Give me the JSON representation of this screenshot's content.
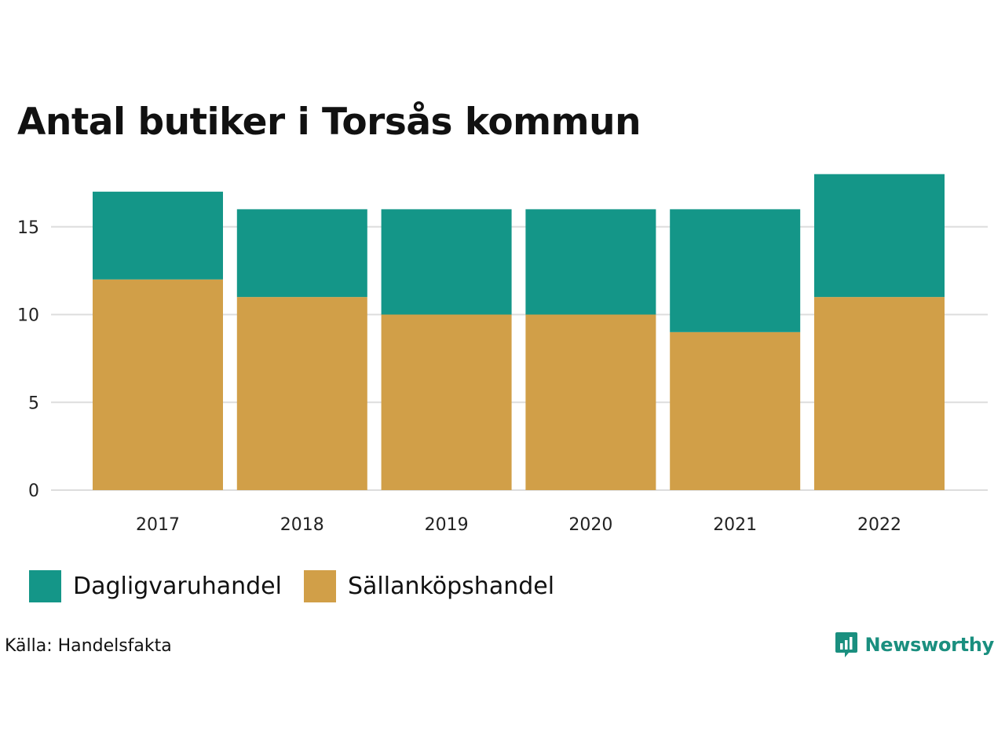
{
  "chart_data": {
    "type": "bar",
    "stacked": true,
    "title": "Antal butiker i Torsås kommun",
    "categories": [
      "2017",
      "2018",
      "2019",
      "2020",
      "2021",
      "2022"
    ],
    "series": [
      {
        "name": "Sällanköpshandel",
        "values": [
          12,
          11,
          10,
          10,
          9,
          11
        ],
        "color": "#d19f48"
      },
      {
        "name": "Dagligvaruhandel",
        "values": [
          5,
          5,
          6,
          6,
          7,
          7
        ],
        "color": "#149688"
      }
    ],
    "yticks": [
      "0",
      "5",
      "10",
      "15"
    ],
    "ylim": [
      0,
      18
    ],
    "grid": true,
    "legend_position": "bottom-left"
  },
  "legend": [
    {
      "label": "Dagligvaruhandel",
      "color": "#149688"
    },
    {
      "label": "Sällanköpshandel",
      "color": "#d19f48"
    }
  ],
  "source": "Källa: Handelsfakta",
  "logo": {
    "text": "Newsworthy",
    "icon": "newsworthy-chart-icon",
    "color": "#1a8f7f"
  }
}
